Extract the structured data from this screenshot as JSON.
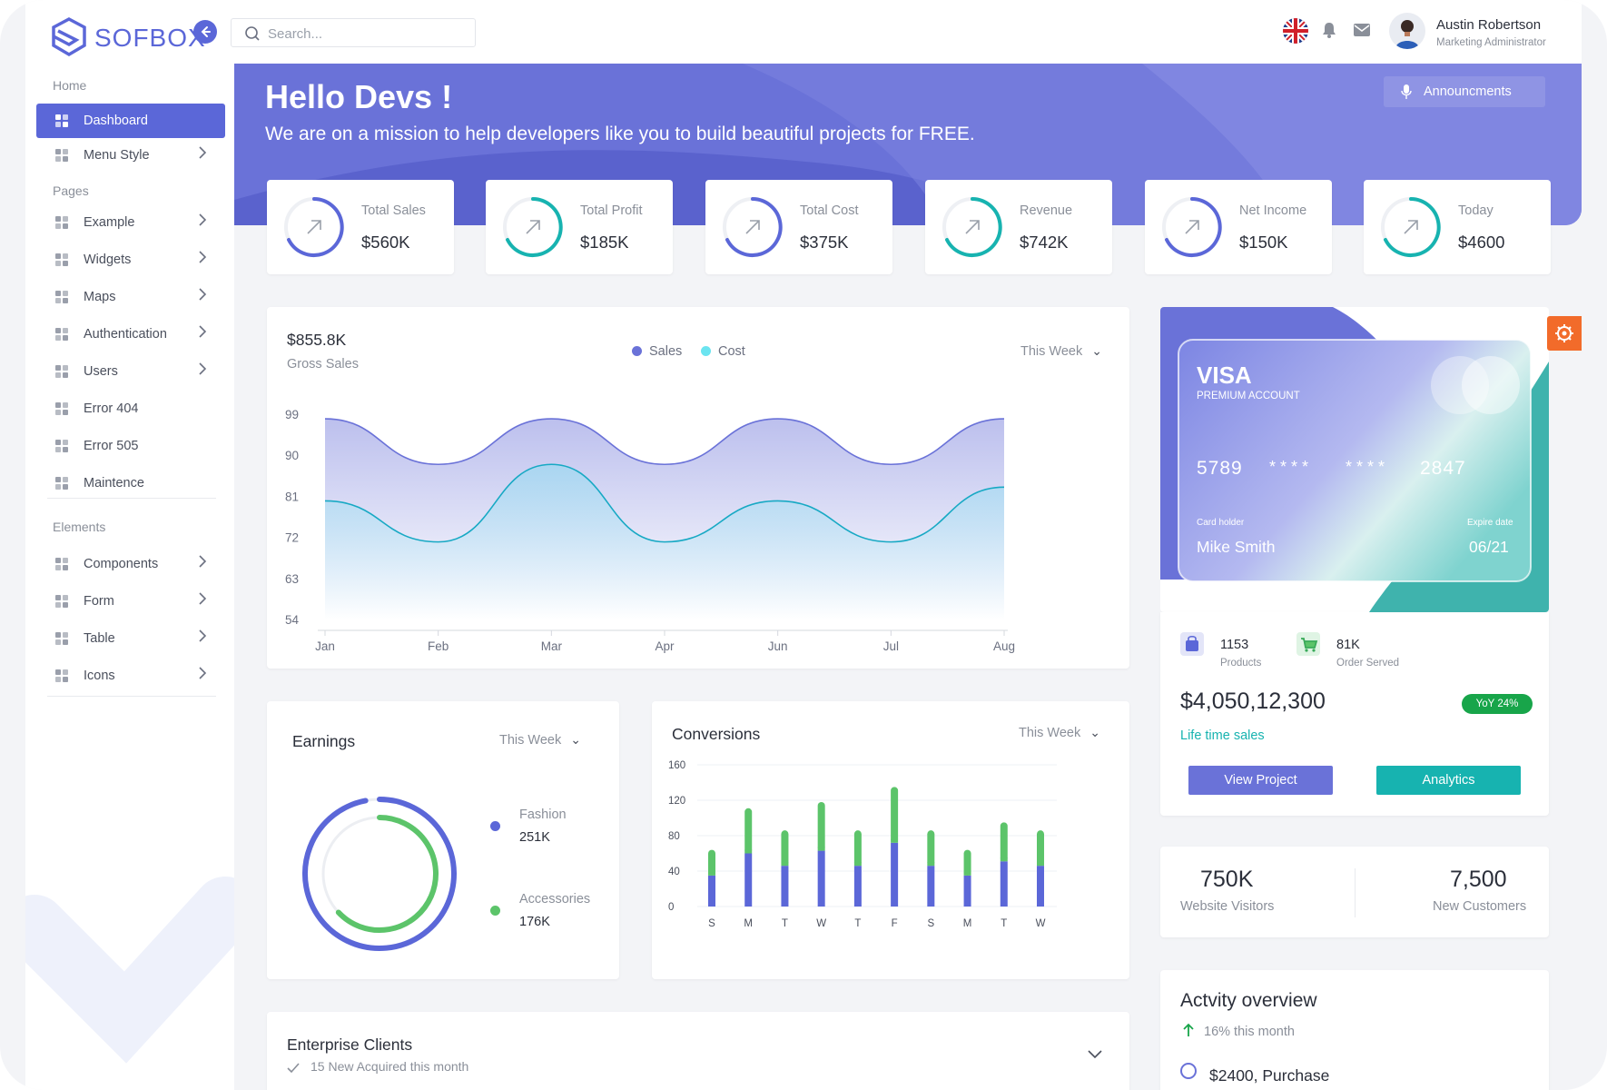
{
  "header": {
    "logo": "SOFBOX",
    "search_placeholder": "Search...",
    "user_name": "Austin Robertson",
    "user_role": "Marketing Administrator"
  },
  "sidebar": {
    "sections": {
      "home": "Home",
      "pages": "Pages",
      "elements": "Elements"
    },
    "items": [
      {
        "label": "Dashboard",
        "icon": "dashboard-icon",
        "chevron": false,
        "active": true
      },
      {
        "label": "Menu Style",
        "icon": "menu-style-icon",
        "chevron": true
      },
      {
        "label": "Example",
        "icon": "gamepad-icon",
        "chevron": true
      },
      {
        "label": "Widgets",
        "icon": "star-icon",
        "chevron": true
      },
      {
        "label": "Maps",
        "icon": "map-pin-icon",
        "chevron": true
      },
      {
        "label": "Authentication",
        "icon": "shield-icon",
        "chevron": true
      },
      {
        "label": "Users",
        "icon": "users-icon",
        "chevron": true
      },
      {
        "label": "Error 404",
        "icon": "alert-circle-icon",
        "chevron": false
      },
      {
        "label": "Error 505",
        "icon": "warning-icon",
        "chevron": false
      },
      {
        "label": "Maintence",
        "icon": "document-icon",
        "chevron": false
      },
      {
        "label": "Components",
        "icon": "components-icon",
        "chevron": true
      },
      {
        "label": "Form",
        "icon": "form-icon",
        "chevron": true
      },
      {
        "label": "Table",
        "icon": "table-icon",
        "chevron": true
      },
      {
        "label": "Icons",
        "icon": "info-icon",
        "chevron": true
      }
    ]
  },
  "banner": {
    "title": "Hello Devs !",
    "subtitle": "We are on a mission to help developers like you to build beautiful projects for FREE.",
    "announce_label": "Announcments"
  },
  "stats": [
    {
      "label": "Total Sales",
      "value": "$560K",
      "color": "#5b67d8"
    },
    {
      "label": "Total Profit",
      "value": "$185K",
      "color": "#17b3b0"
    },
    {
      "label": "Total Cost",
      "value": "$375K",
      "color": "#5b67d8"
    },
    {
      "label": "Revenue",
      "value": "$742K",
      "color": "#17b3b0"
    },
    {
      "label": "Net Income",
      "value": "$150K",
      "color": "#5b67d8"
    },
    {
      "label": "Today",
      "value": "$4600",
      "color": "#17b3b0"
    }
  ],
  "gross": {
    "value": "$855.8K",
    "label": "Gross Sales",
    "legend": [
      "Sales",
      "Cost"
    ],
    "period": "This Week"
  },
  "earnings": {
    "title": "Earnings",
    "period": "This Week",
    "items": [
      {
        "name": "Fashion",
        "value": "251K",
        "color": "#5b67d8"
      },
      {
        "name": "Accessories",
        "value": "176K",
        "color": "#5cc46a"
      }
    ]
  },
  "conversions": {
    "title": "Conversions",
    "period": "This Week"
  },
  "clients": {
    "title": "Enterprise Clients",
    "subtitle": "15 New Acquired this month"
  },
  "visa": {
    "brand": "VISA",
    "account": "PREMIUM ACCOUNT",
    "num1": "5789",
    "num2": "* * * *",
    "num3": "* * * *",
    "num4": "2847",
    "holder_label": "Card holder",
    "holder": "Mike Smith",
    "expire_label": "Expire date",
    "expire": "06/21",
    "products_value": "1153",
    "products_label": "Products",
    "orders_value": "81K",
    "orders_label": "Order Served",
    "total": "$4,050,12,300",
    "yoy": "YoY 24%",
    "lifetime": "Life time sales",
    "view_btn": "View Project",
    "analytics_btn": "Analytics"
  },
  "visitors": {
    "a_value": "750K",
    "a_label": "Website Visitors",
    "b_value": "7,500",
    "b_label": "New Customers"
  },
  "activity": {
    "title": "Actvity overview",
    "sub": "16% this month",
    "first_item": "$2400, Purchase"
  },
  "chart_data": [
    {
      "type": "area",
      "title": "Gross Sales",
      "x": [
        "Jan",
        "Feb",
        "Mar",
        "Apr",
        "Jun",
        "Jul",
        "Aug"
      ],
      "y_ticks": [
        "99",
        "90",
        "81",
        "72",
        "63",
        "54"
      ],
      "ylim": [
        54,
        99
      ],
      "series": [
        {
          "name": "Sales",
          "color": "#6a72d8",
          "values": [
            98,
            88,
            98,
            88,
            98,
            88,
            98
          ]
        },
        {
          "name": "Cost",
          "color": "#17a9c4",
          "values": [
            80,
            71,
            88,
            71,
            80,
            71,
            83
          ]
        }
      ]
    },
    {
      "type": "bar",
      "title": "Conversions",
      "categories": [
        "S",
        "M",
        "T",
        "W",
        "T",
        "F",
        "S",
        "M",
        "T",
        "W"
      ],
      "y_ticks": [
        "160",
        "120",
        "80",
        "40",
        "0"
      ],
      "ylim": [
        0,
        160
      ],
      "series": [
        {
          "color": "#5b67d8",
          "values": [
            35,
            60,
            46,
            63,
            46,
            72,
            46,
            35,
            51,
            46
          ]
        },
        {
          "color": "#5cc46a",
          "values": [
            29,
            51,
            40,
            55,
            40,
            63,
            40,
            29,
            44,
            40
          ]
        }
      ]
    },
    {
      "type": "pie",
      "title": "Earnings",
      "categories": [
        "Fashion",
        "Accessories"
      ],
      "values": [
        251,
        176
      ],
      "ring_fill": [
        0.97,
        0.63
      ]
    }
  ]
}
